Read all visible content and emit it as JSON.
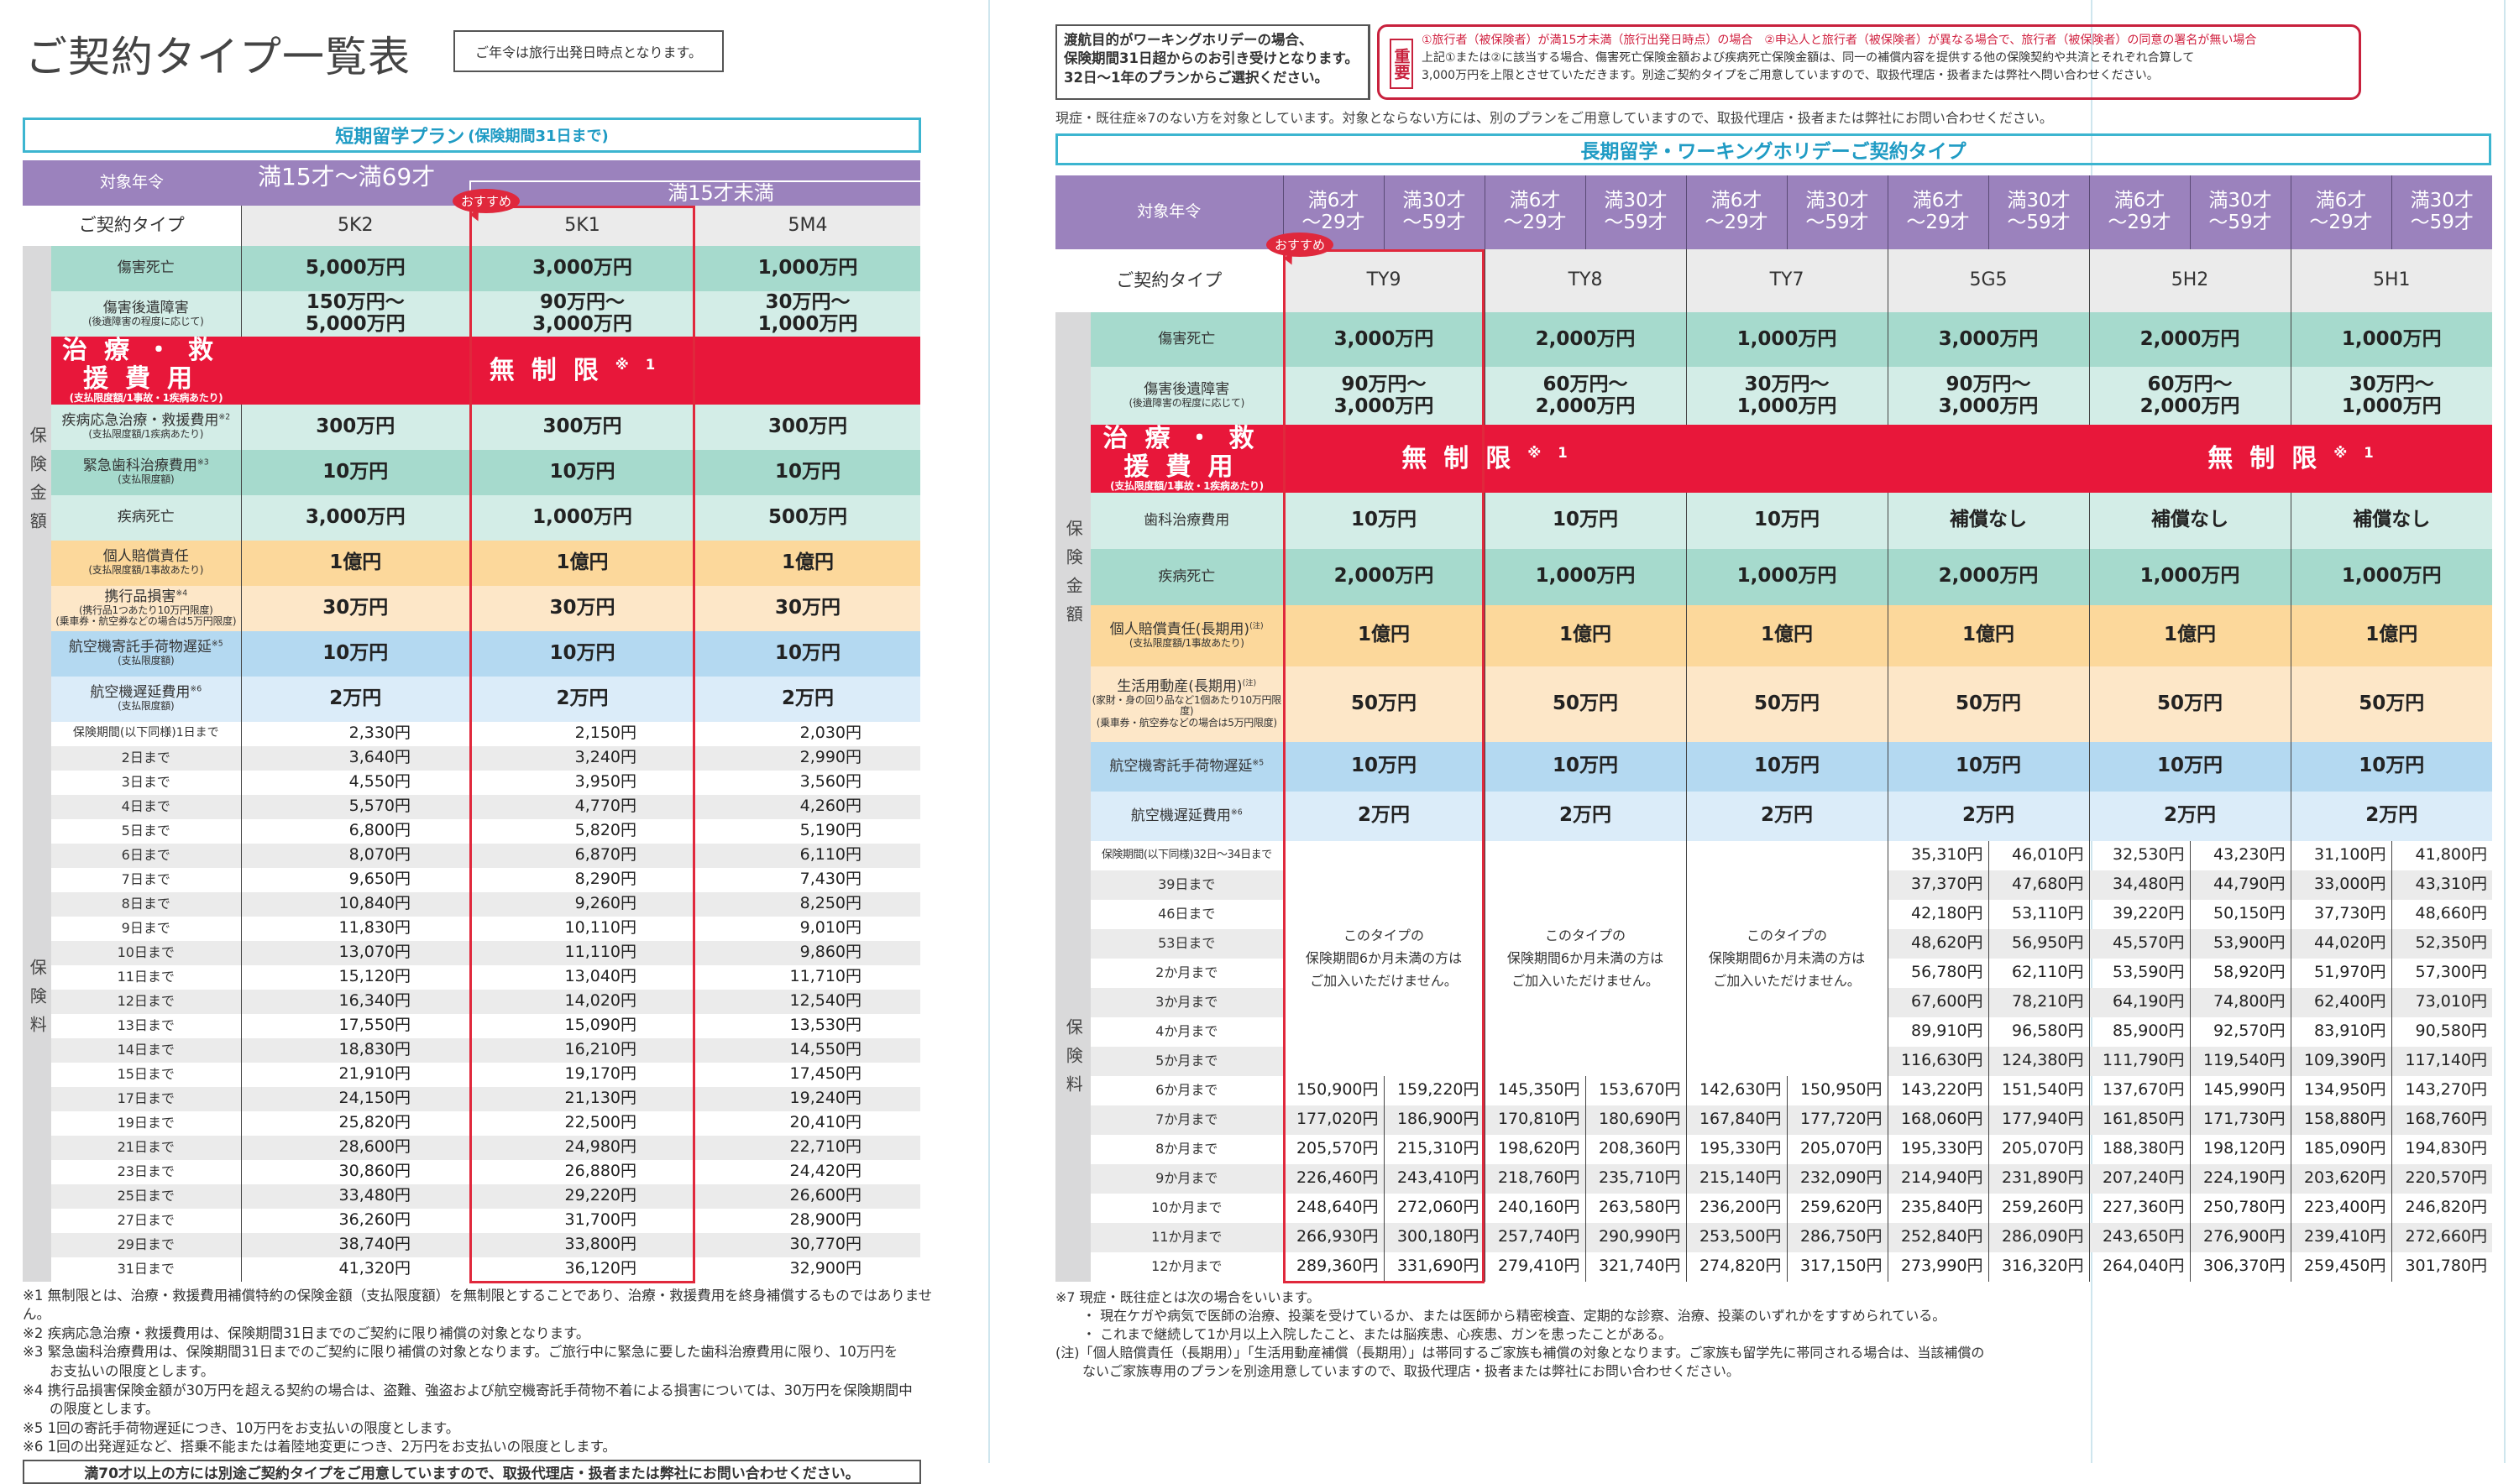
{
  "left": {
    "title": "ご契約タイプ一覧表",
    "age_note": "ご年令は旅行出発日時点となります。",
    "section_title": "短期留学プラン",
    "section_sub": "(保険期間31日まで)",
    "age_label": "対象年令",
    "age_adult": "満15才～満69才",
    "age_child": "満15才未満",
    "type_label": "ご契約タイプ",
    "recommend": "おすすめ",
    "types": [
      "5K2",
      "5K1",
      "5M4"
    ],
    "coverage_side": "保険金額",
    "coverage": [
      {
        "label": "傷害死亡",
        "color": "dt",
        "values": [
          "5,000万円",
          "3,000万円",
          "1,000万円"
        ]
      },
      {
        "label": "傷害後遺障害",
        "sub": "(後遺障害の程度に応じて)",
        "color": "lt",
        "values": [
          "150万円～\n5,000万円",
          "90万円～\n3,000万円",
          "30万円～\n1,000万円"
        ]
      },
      {
        "label": "治療・救援費用",
        "sub": "(支払限度額/1事故・1疾病あたり)",
        "color": "red",
        "merged": "無制限",
        "merged_note": "※1"
      },
      {
        "label": "疾病応急治療・救援費用",
        "note": "※2",
        "sub": "(支払限度額/1疾病あたり)",
        "color": "lt",
        "values": [
          "300万円",
          "300万円",
          "300万円"
        ]
      },
      {
        "label": "緊急歯科治療費用",
        "note": "※3",
        "sub": "(支払限度額)",
        "color": "dt",
        "values": [
          "10万円",
          "10万円",
          "10万円"
        ]
      },
      {
        "label": "疾病死亡",
        "color": "lt",
        "values": [
          "3,000万円",
          "1,000万円",
          "500万円"
        ]
      },
      {
        "label": "個人賠償責任",
        "sub": "(支払限度額/1事故あたり)",
        "color": "or",
        "values": [
          "1億円",
          "1億円",
          "1億円"
        ]
      },
      {
        "label": "携行品損害",
        "note": "※4",
        "sub": "(携行品1つあたり10万円限度)\n(乗車券・航空券などの場合は5万円限度)",
        "color": "lo",
        "values": [
          "30万円",
          "30万円",
          "30万円"
        ]
      },
      {
        "label": "航空機寄託手荷物遅延",
        "note": "※5",
        "sub": "(支払限度額)",
        "color": "bl",
        "values": [
          "10万円",
          "10万円",
          "10万円"
        ]
      },
      {
        "label": "航空機遅延費用",
        "note": "※6",
        "sub": "(支払限度額)",
        "color": "lb",
        "values": [
          "2万円",
          "2万円",
          "2万円"
        ]
      }
    ],
    "premium_side": "保険料",
    "premiums": [
      {
        "period": "保険期間(以下同様)1日まで",
        "values": [
          "2,330円",
          "2,150円",
          "2,030円"
        ]
      },
      {
        "period": "2日まで",
        "values": [
          "3,640円",
          "3,240円",
          "2,990円"
        ]
      },
      {
        "period": "3日まで",
        "values": [
          "4,550円",
          "3,950円",
          "3,560円"
        ]
      },
      {
        "period": "4日まで",
        "values": [
          "5,570円",
          "4,770円",
          "4,260円"
        ]
      },
      {
        "period": "5日まで",
        "values": [
          "6,800円",
          "5,820円",
          "5,190円"
        ]
      },
      {
        "period": "6日まで",
        "values": [
          "8,070円",
          "6,870円",
          "6,110円"
        ]
      },
      {
        "period": "7日まで",
        "values": [
          "9,650円",
          "8,290円",
          "7,430円"
        ]
      },
      {
        "period": "8日まで",
        "values": [
          "10,840円",
          "9,260円",
          "8,250円"
        ]
      },
      {
        "period": "9日まで",
        "values": [
          "11,830円",
          "10,110円",
          "9,010円"
        ]
      },
      {
        "period": "10日まで",
        "values": [
          "13,070円",
          "11,110円",
          "9,860円"
        ]
      },
      {
        "period": "11日まで",
        "values": [
          "15,120円",
          "13,040円",
          "11,710円"
        ]
      },
      {
        "period": "12日まで",
        "values": [
          "16,340円",
          "14,020円",
          "12,540円"
        ]
      },
      {
        "period": "13日まで",
        "values": [
          "17,550円",
          "15,090円",
          "13,530円"
        ]
      },
      {
        "period": "14日まで",
        "values": [
          "18,830円",
          "16,210円",
          "14,550円"
        ]
      },
      {
        "period": "15日まで",
        "values": [
          "21,910円",
          "19,170円",
          "17,450円"
        ]
      },
      {
        "period": "17日まで",
        "values": [
          "24,150円",
          "21,130円",
          "19,240円"
        ]
      },
      {
        "period": "19日まで",
        "values": [
          "25,820円",
          "22,500円",
          "20,410円"
        ]
      },
      {
        "period": "21日まで",
        "values": [
          "28,600円",
          "24,980円",
          "22,710円"
        ]
      },
      {
        "period": "23日まで",
        "values": [
          "30,860円",
          "26,880円",
          "24,420円"
        ]
      },
      {
        "period": "25日まで",
        "values": [
          "33,480円",
          "29,220円",
          "26,600円"
        ]
      },
      {
        "period": "27日まで",
        "values": [
          "36,260円",
          "31,700円",
          "28,900円"
        ]
      },
      {
        "period": "29日まで",
        "values": [
          "38,740円",
          "33,800円",
          "30,770円"
        ]
      },
      {
        "period": "31日まで",
        "values": [
          "41,320円",
          "36,120円",
          "32,900円"
        ]
      }
    ],
    "footnotes": [
      {
        "text": "※1 無制限とは、治療・救援費用補償特約の保険金額（支払限度額）を無制限とすることであり、治療・救援費用を終身補償するものではありません。"
      },
      {
        "text": "※2 疾病応急治療・救援費用は、保険期間31日までのご契約に限り補償の対象となります。"
      },
      {
        "text": "※3 緊急歯科治療費用は、保険期間31日までのご契約に限り補償の対象となります。ご旅行中に緊急に要した歯科治療費用に限り、10万円を",
        "cont": "お支払いの限度とします。"
      },
      {
        "text": "※4 携行品損害保険金額が30万円を超える契約の場合は、盗難、強盗および航空機寄託手荷物不着による損害については、30万円を保険期間中",
        "cont": "の限度とします。"
      },
      {
        "text": "※5 1回の寄託手荷物遅延につき、10万円をお支払いの限度とします。"
      },
      {
        "text": "※6 1回の出発遅延など、搭乗不能または着陸地変更につき、2万円をお支払いの限度とします。"
      }
    ],
    "bottom_notice": "満70才以上の方には別途ご契約タイプをご用意していますので、取扱代理店・扱者または弊社にお問い合わせください。"
  },
  "right": {
    "wh_note": "渡航目的がワーキングホリデーの場合、\n保険期間31日超からのお引き受けとなります。\n32日～1年のプランからご選択ください。",
    "important_label": "重要",
    "important_red": "①旅行者（被保険者）が満15才未満（旅行出発日時点）の場合　②申込人と旅行者（被保険者）が異なる場合で、旅行者（被保険者）の同意の署名が無い場合",
    "important_body": "上記①または②に該当する場合、傷害死亡保険金額および疾病死亡保険金額は、同一の補償内容を提供する他の保険契約や共済とそれぞれ合算して\n3,000万円を上限とさせていただきます。別途ご契約タイプをご用意していますので、取扱代理店・扱者または弊社へ問い合わせください。",
    "preexisting_note": "現症・既往症※7のない方を対象としています。対象とならない方には、別のプランをご用意していますので、取扱代理店・扱者または弊社にお問い合わせください。",
    "section_title": "長期留学・ワーキングホリデーご契約タイプ",
    "age_label": "対象年令",
    "ages": [
      "満6才\n～29才",
      "満30才\n～59才"
    ],
    "type_label": "ご契約タイプ",
    "recommend": "おすすめ",
    "types": [
      "TY9",
      "TY8",
      "TY7",
      "5G5",
      "5H2",
      "5H1"
    ],
    "coverage_side": "保険金額",
    "coverage": [
      {
        "label": "傷害死亡",
        "color": "dt",
        "values": [
          "3,000万円",
          "2,000万円",
          "1,000万円",
          "3,000万円",
          "2,000万円",
          "1,000万円"
        ]
      },
      {
        "label": "傷害後遺障害",
        "sub": "(後遺障害の程度に応じて)",
        "color": "lt",
        "values": [
          "90万円～\n3,000万円",
          "60万円～\n2,000万円",
          "30万円～\n1,000万円",
          "90万円～\n3,000万円",
          "60万円～\n2,000万円",
          "30万円～\n1,000万円"
        ]
      },
      {
        "label": "治療・救援費用",
        "sub": "(支払限度額/1事故・1疾病あたり)",
        "color": "red",
        "merged": "無制限",
        "merged_note": "※1"
      },
      {
        "label": "歯科治療費用",
        "color": "lt",
        "values": [
          "10万円",
          "10万円",
          "10万円",
          "補償なし",
          "補償なし",
          "補償なし"
        ]
      },
      {
        "label": "疾病死亡",
        "color": "dt",
        "values": [
          "2,000万円",
          "1,000万円",
          "1,000万円",
          "2,000万円",
          "1,000万円",
          "1,000万円"
        ]
      },
      {
        "label": "個人賠償責任(長期用)",
        "note": "(注)",
        "sub": "(支払限度額/1事故あたり)",
        "color": "or",
        "values": [
          "1億円",
          "1億円",
          "1億円",
          "1億円",
          "1億円",
          "1億円"
        ]
      },
      {
        "label": "生活用動産(長期用)",
        "note": "(注)",
        "sub": "(家財・身の回り品など1個あたり10万円限度)\n(乗車券・航空券などの場合は5万円限度)",
        "color": "lo",
        "values": [
          "50万円",
          "50万円",
          "50万円",
          "50万円",
          "50万円",
          "50万円"
        ]
      },
      {
        "label": "航空機寄託手荷物遅延",
        "note": "※5",
        "color": "bl",
        "values": [
          "10万円",
          "10万円",
          "10万円",
          "10万円",
          "10万円",
          "10万円"
        ]
      },
      {
        "label": "航空機遅延費用",
        "note": "※6",
        "color": "lb",
        "values": [
          "2万円",
          "2万円",
          "2万円",
          "2万円",
          "2万円",
          "2万円"
        ]
      }
    ],
    "premium_side": "保険料",
    "not_available": "このタイプの\n保険期間6か月未満の方は\nご加入いただけません。",
    "premiums": [
      {
        "period": "保険期間(以下同様)32日～34日まで",
        "values": [
          null,
          null,
          null,
          null,
          null,
          null,
          "35,310円",
          "46,010円",
          "32,530円",
          "43,230円",
          "31,100円",
          "41,800円"
        ]
      },
      {
        "period": "39日まで",
        "values": [
          null,
          null,
          null,
          null,
          null,
          null,
          "37,370円",
          "47,680円",
          "34,480円",
          "44,790円",
          "33,000円",
          "43,310円"
        ]
      },
      {
        "period": "46日まで",
        "values": [
          null,
          null,
          null,
          null,
          null,
          null,
          "42,180円",
          "53,110円",
          "39,220円",
          "50,150円",
          "37,730円",
          "48,660円"
        ]
      },
      {
        "period": "53日まで",
        "values": [
          null,
          null,
          null,
          null,
          null,
          null,
          "48,620円",
          "56,950円",
          "45,570円",
          "53,900円",
          "44,020円",
          "52,350円"
        ]
      },
      {
        "period": "2か月まで",
        "values": [
          null,
          null,
          null,
          null,
          null,
          null,
          "56,780円",
          "62,110円",
          "53,590円",
          "58,920円",
          "51,970円",
          "57,300円"
        ]
      },
      {
        "period": "3か月まで",
        "values": [
          null,
          null,
          null,
          null,
          null,
          null,
          "67,600円",
          "78,210円",
          "64,190円",
          "74,800円",
          "62,400円",
          "73,010円"
        ]
      },
      {
        "period": "4か月まで",
        "values": [
          null,
          null,
          null,
          null,
          null,
          null,
          "89,910円",
          "96,580円",
          "85,900円",
          "92,570円",
          "83,910円",
          "90,580円"
        ]
      },
      {
        "period": "5か月まで",
        "values": [
          null,
          null,
          null,
          null,
          null,
          null,
          "116,630円",
          "124,380円",
          "111,790円",
          "119,540円",
          "109,390円",
          "117,140円"
        ]
      },
      {
        "period": "6か月まで",
        "values": [
          "150,900円",
          "159,220円",
          "145,350円",
          "153,670円",
          "142,630円",
          "150,950円",
          "143,220円",
          "151,540円",
          "137,670円",
          "145,990円",
          "134,950円",
          "143,270円"
        ]
      },
      {
        "period": "7か月まで",
        "values": [
          "177,020円",
          "186,900円",
          "170,810円",
          "180,690円",
          "167,840円",
          "177,720円",
          "168,060円",
          "177,940円",
          "161,850円",
          "171,730円",
          "158,880円",
          "168,760円"
        ]
      },
      {
        "period": "8か月まで",
        "values": [
          "205,570円",
          "215,310円",
          "198,620円",
          "208,360円",
          "195,330円",
          "205,070円",
          "195,330円",
          "205,070円",
          "188,380円",
          "198,120円",
          "185,090円",
          "194,830円"
        ]
      },
      {
        "period": "9か月まで",
        "values": [
          "226,460円",
          "243,410円",
          "218,760円",
          "235,710円",
          "215,140円",
          "232,090円",
          "214,940円",
          "231,890円",
          "207,240円",
          "224,190円",
          "203,620円",
          "220,570円"
        ]
      },
      {
        "period": "10か月まで",
        "values": [
          "248,640円",
          "272,060円",
          "240,160円",
          "263,580円",
          "236,200円",
          "259,620円",
          "235,840円",
          "259,260円",
          "227,360円",
          "250,780円",
          "223,400円",
          "246,820円"
        ]
      },
      {
        "period": "11か月まで",
        "values": [
          "266,930円",
          "300,180円",
          "257,740円",
          "290,990円",
          "253,500円",
          "286,750円",
          "252,840円",
          "286,090円",
          "243,650円",
          "276,900円",
          "239,410円",
          "272,660円"
        ]
      },
      {
        "period": "12か月まで",
        "values": [
          "289,360円",
          "331,690円",
          "279,410円",
          "321,740円",
          "274,820円",
          "317,150円",
          "273,990円",
          "316,320円",
          "264,040円",
          "306,370円",
          "259,450円",
          "301,780円"
        ]
      }
    ],
    "footnotes": [
      {
        "text": "※7 現症・既往症とは次の場合をいいます。"
      },
      {
        "text": "・ 現在ケガや病気で医師の治療、投薬を受けているか、または医師から精密検査、定期的な診察、治療、投薬のいずれかをすすめられている。",
        "indent": true
      },
      {
        "text": "・ これまで継続して1か月以上入院したこと、または脳疾患、心疾患、ガンを患ったことがある。",
        "indent": true
      },
      {
        "text": "(注)「個人賠償責任（長期用）」「生活用動産補償（長期用）」は帯同するご家族も補償の対象となります。ご家族も留学先に帯同される場合は、当該補償の",
        "cont": "ないご家族専用のプランを別途用意していますので、取扱代理店・扱者または弊社にお問い合わせください。"
      }
    ]
  }
}
